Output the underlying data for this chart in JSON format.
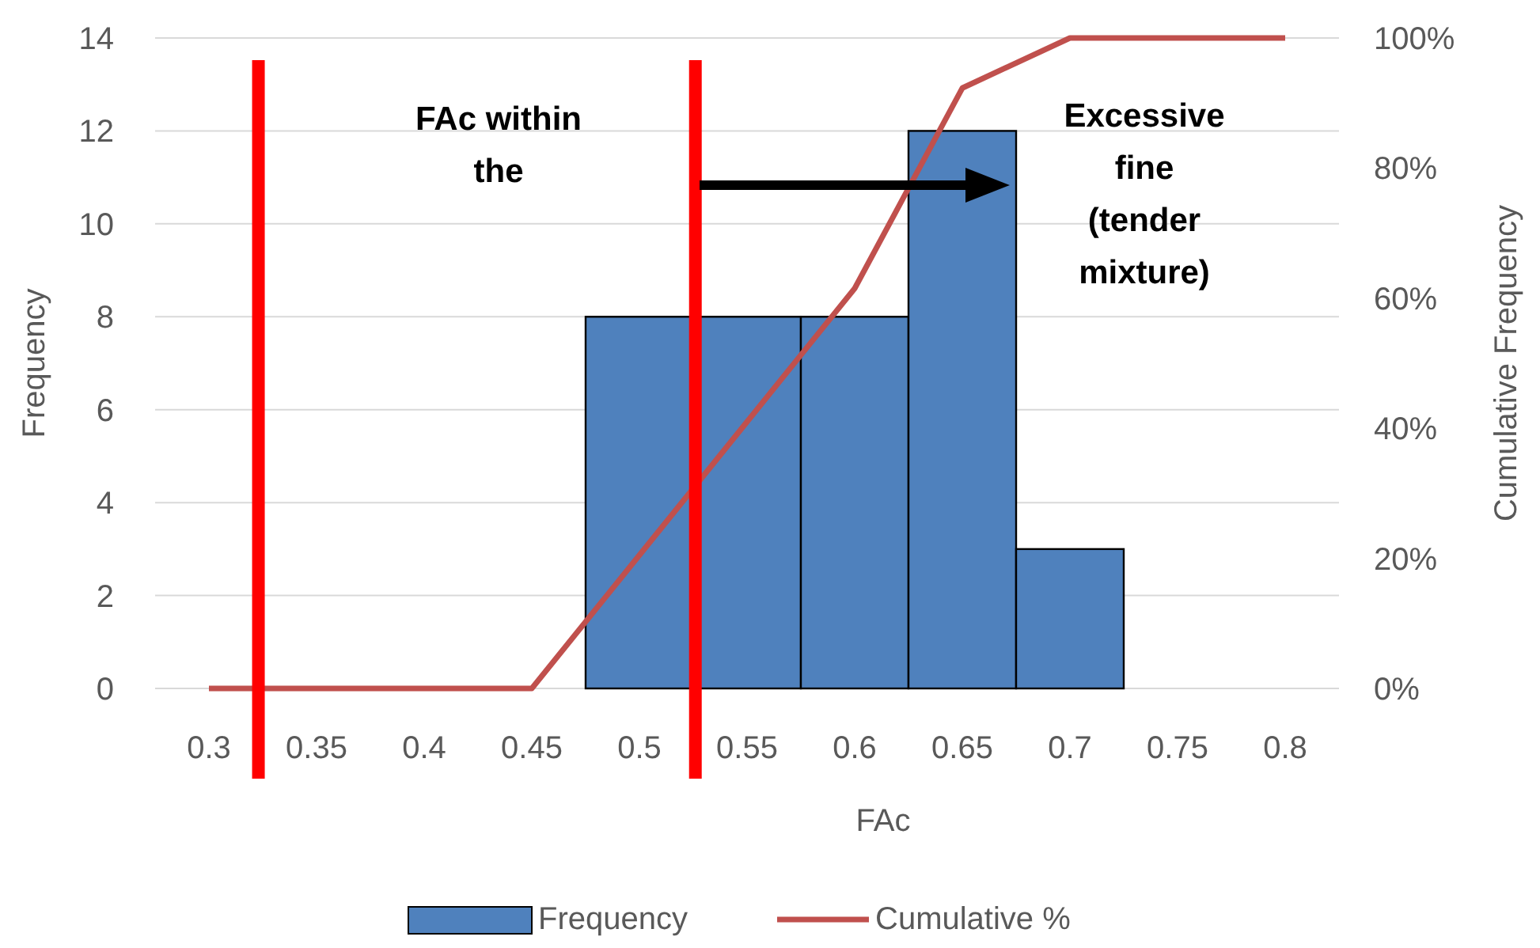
{
  "chart_data": {
    "type": "histogram",
    "xlabel": "FAc",
    "ylabel": "Frequency",
    "y2label": "Cumulative Frequency",
    "xlim": [
      0.275,
      0.825
    ],
    "xticks": [
      0.3,
      0.35,
      0.4,
      0.45,
      0.5,
      0.55,
      0.6,
      0.65,
      0.7,
      0.75,
      0.8
    ],
    "ylim": [
      0,
      14
    ],
    "yticks": [
      0,
      2,
      4,
      6,
      8,
      10,
      12,
      14
    ],
    "y2lim": [
      0,
      100
    ],
    "y2ticks": [
      {
        "value": 0,
        "label": "0%"
      },
      {
        "value": 20,
        "label": "20%"
      },
      {
        "value": 40,
        "label": "40%"
      },
      {
        "value": 60,
        "label": "60%"
      },
      {
        "value": 80,
        "label": "80%"
      },
      {
        "value": 100,
        "label": "100%"
      }
    ],
    "grid": "y",
    "legend": "bottom",
    "series": [
      {
        "name": "Frequency",
        "color": "#4f81bd",
        "bins": [
          0.475,
          0.525,
          0.575,
          0.625,
          0.675,
          0.725
        ],
        "values": [
          8,
          8,
          8,
          12,
          3
        ]
      },
      {
        "name": "Cumulative %",
        "type": "line",
        "axis": "y2",
        "color": "#c0504d",
        "marker": "none",
        "x": [
          0.3,
          0.35,
          0.4,
          0.45,
          0.5,
          0.55,
          0.6,
          0.65,
          0.7,
          0.75,
          0.8
        ],
        "values": [
          0,
          0,
          0,
          0,
          20.5,
          41,
          61.5,
          92.3,
          100,
          100,
          100
        ]
      }
    ],
    "ref_lines": [
      {
        "axis": "x",
        "value": 0.323,
        "color": "#ff0000"
      },
      {
        "axis": "x",
        "value": 0.526,
        "color": "#ff0000"
      }
    ],
    "annotations": [
      "FAc within the",
      "Excessive fine (tender mixture)"
    ]
  }
}
